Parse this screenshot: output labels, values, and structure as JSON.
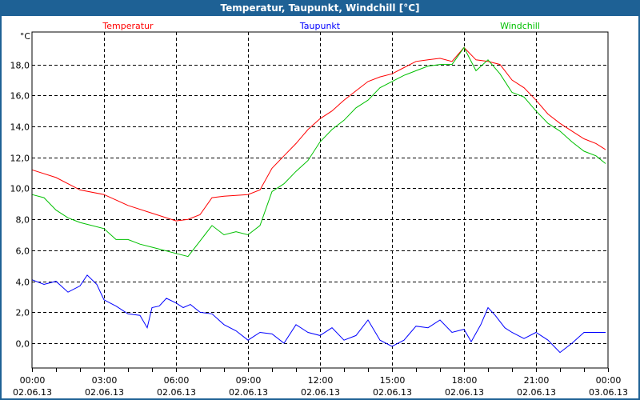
{
  "window": {
    "title": "Temperatur, Taupunkt, Windchill [°C]"
  },
  "chart_data": {
    "type": "line",
    "title": "Temperatur, Taupunkt, Windchill [°C]",
    "ylabel": "°C",
    "xlabel": "",
    "ylim": [
      -1.6,
      20.1
    ],
    "xlim": [
      0,
      24
    ],
    "grid": true,
    "y_ticks": [
      0,
      2,
      4,
      6,
      8,
      10,
      12,
      14,
      16,
      18
    ],
    "y_tick_labels": [
      "0,0",
      "2,0",
      "4,0",
      "6,0",
      "8,0",
      "10,0",
      "12,0",
      "14,0",
      "16,0",
      "18,0"
    ],
    "x_ticks": [
      0,
      3,
      6,
      9,
      12,
      15,
      18,
      21,
      24
    ],
    "x_tick_labels": [
      [
        "00:00",
        "02.06.13"
      ],
      [
        "03:00",
        "02.06.13"
      ],
      [
        "06:00",
        "02.06.13"
      ],
      [
        "09:00",
        "02.06.13"
      ],
      [
        "12:00",
        "02.06.13"
      ],
      [
        "15:00",
        "02.06.13"
      ],
      [
        "18:00",
        "02.06.13"
      ],
      [
        "21:00",
        "02.06.13"
      ],
      [
        "00:00",
        "03.06.13"
      ]
    ],
    "legend_placement": "top",
    "series": [
      {
        "name": "Temperatur",
        "color": "#ff0000",
        "x": [
          0,
          1,
          2,
          3,
          4,
          5,
          6,
          6.5,
          7,
          7.5,
          8,
          9,
          9.5,
          10,
          10.5,
          11,
          11.5,
          12,
          12.5,
          13,
          13.5,
          14,
          14.5,
          15,
          15.5,
          16,
          16.5,
          17,
          17.5,
          18,
          18.5,
          19,
          19.5,
          20,
          20.5,
          21,
          21.5,
          22,
          22.5,
          23,
          23.5,
          23.9
        ],
        "y": [
          11.2,
          10.7,
          9.9,
          9.6,
          8.9,
          8.4,
          7.9,
          8.0,
          8.3,
          9.4,
          9.5,
          9.6,
          9.9,
          11.3,
          12.1,
          12.9,
          13.8,
          14.5,
          15.0,
          15.7,
          16.3,
          16.9,
          17.2,
          17.4,
          17.8,
          18.2,
          18.3,
          18.4,
          18.2,
          19.1,
          18.3,
          18.2,
          18.0,
          17.0,
          16.5,
          15.7,
          14.8,
          14.2,
          13.7,
          13.2,
          12.9,
          12.5
        ]
      },
      {
        "name": "Taupunkt",
        "color": "#0000ff",
        "x": [
          0,
          0.5,
          1,
          1.5,
          2,
          2.3,
          2.7,
          3,
          3.5,
          4,
          4.5,
          4.8,
          5,
          5.3,
          5.6,
          6,
          6.3,
          6.6,
          7,
          7.5,
          8,
          8.5,
          9,
          9.5,
          10,
          10.5,
          11,
          11.5,
          12,
          12.5,
          13,
          13.5,
          14,
          14.5,
          15,
          15.5,
          16,
          16.5,
          17,
          17.5,
          18,
          18.3,
          18.7,
          19,
          19.3,
          19.7,
          20,
          20.5,
          21,
          21.5,
          22,
          22.5,
          23,
          23.5,
          23.9
        ],
        "y": [
          4.1,
          3.8,
          4.0,
          3.3,
          3.7,
          4.4,
          3.8,
          2.8,
          2.4,
          1.9,
          1.8,
          1.0,
          2.3,
          2.4,
          2.9,
          2.6,
          2.3,
          2.5,
          2.0,
          1.9,
          1.2,
          0.8,
          0.2,
          0.7,
          0.6,
          0.0,
          1.2,
          0.7,
          0.5,
          1.0,
          0.2,
          0.5,
          1.5,
          0.2,
          -0.2,
          0.2,
          1.1,
          1.0,
          1.5,
          0.7,
          0.9,
          0.1,
          1.2,
          2.3,
          1.8,
          1.0,
          0.7,
          0.3,
          0.7,
          0.2,
          -0.6,
          0.0,
          0.7,
          0.7,
          0.7
        ]
      },
      {
        "name": "Windchill",
        "color": "#00c000",
        "x": [
          0,
          0.5,
          1,
          1.5,
          2,
          3,
          3.5,
          4,
          4.5,
          5,
          5.5,
          6,
          6.5,
          7,
          7.5,
          8,
          8.5,
          9,
          9.5,
          10,
          10.5,
          11,
          11.5,
          12,
          12.5,
          13,
          13.5,
          14,
          14.5,
          15,
          15.5,
          16,
          16.5,
          17,
          17.5,
          18,
          18.5,
          19,
          19.5,
          20,
          20.5,
          21,
          21.5,
          22,
          22.5,
          23,
          23.5,
          23.9
        ],
        "y": [
          9.6,
          9.4,
          8.6,
          8.1,
          7.8,
          7.4,
          6.7,
          6.7,
          6.4,
          6.2,
          6.0,
          5.8,
          5.6,
          6.6,
          7.6,
          7.0,
          7.2,
          7.0,
          7.6,
          9.8,
          10.3,
          11.1,
          11.8,
          13.0,
          13.8,
          14.4,
          15.2,
          15.7,
          16.5,
          16.9,
          17.3,
          17.6,
          17.9,
          18.0,
          18.0,
          19.1,
          17.6,
          18.3,
          17.4,
          16.2,
          15.9,
          15.0,
          14.2,
          13.7,
          13.0,
          12.4,
          12.1,
          11.6
        ]
      }
    ]
  }
}
